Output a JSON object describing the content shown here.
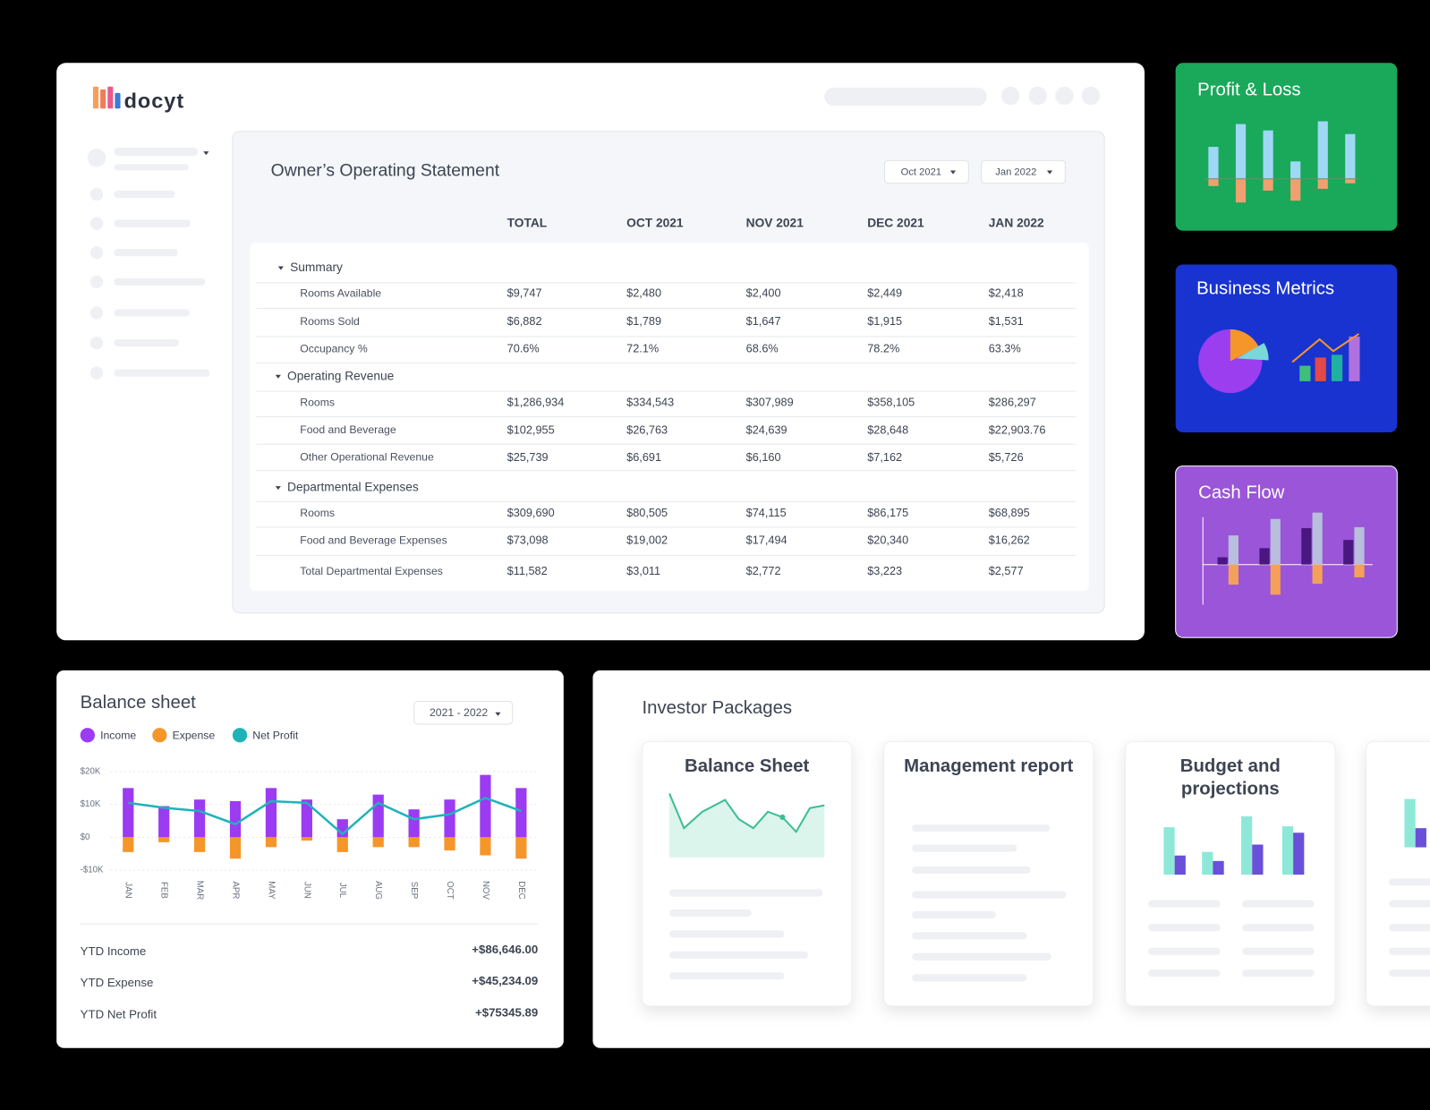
{
  "logo": "docyt",
  "statement": {
    "title": "Owner’s Operating Statement",
    "filters": [
      "Oct 2021",
      "Jan 2022"
    ],
    "columns": [
      "TOTAL",
      "OCT 2021",
      "NOV 2021",
      "DEC 2021",
      "JAN 2022"
    ],
    "sections": [
      {
        "name": "Summary",
        "rows": [
          {
            "label": "Rooms Available",
            "values": [
              "$9,747",
              "$2,480",
              "$2,400",
              "$2,449",
              "$2,418"
            ]
          },
          {
            "label": "Rooms Sold",
            "values": [
              "$6,882",
              "$1,789",
              "$1,647",
              "$1,915",
              "$1,531"
            ]
          },
          {
            "label": "Occupancy %",
            "values": [
              "70.6%",
              "72.1%",
              "68.6%",
              "78.2%",
              "63.3%"
            ]
          }
        ]
      },
      {
        "name": "Operating Revenue",
        "rows": [
          {
            "label": "Rooms",
            "values": [
              "$1,286,934",
              "$334,543",
              "$307,989",
              "$358,105",
              "$286,297"
            ]
          },
          {
            "label": "Food and Beverage",
            "values": [
              "$102,955",
              "$26,763",
              "$24,639",
              "$28,648",
              "$22,903.76"
            ]
          },
          {
            "label": "Other Operational Revenue",
            "values": [
              "$25,739",
              "$6,691",
              "$6,160",
              "$7,162",
              "$5,726"
            ]
          }
        ]
      },
      {
        "name": "Departmental Expenses",
        "rows": [
          {
            "label": "Rooms",
            "values": [
              "$309,690",
              "$80,505",
              "$74,115",
              "$86,175",
              "$68,895"
            ]
          },
          {
            "label": "Food and Beverage Expenses",
            "values": [
              "$73,098",
              "$19,002",
              "$17,494",
              "$20,340",
              "$16,262"
            ]
          },
          {
            "label": "Total Departmental Expenses",
            "values": [
              "$11,582",
              "$3,011",
              "$2,772",
              "$3,223",
              "$2,577"
            ]
          }
        ]
      }
    ]
  },
  "side_cards": [
    "Profit & Loss",
    "Business Metrics",
    "Cash Flow"
  ],
  "chart_data": {
    "type": "bar",
    "title": "Balance sheet",
    "categories": [
      "JAN",
      "FEB",
      "MAR",
      "APR",
      "MAY",
      "JUN",
      "JUL",
      "AUG",
      "SEP",
      "OCT",
      "NOV",
      "DEC"
    ],
    "series": [
      {
        "name": "Income",
        "type": "bar",
        "color": "#9b3bf2",
        "values": [
          15000,
          9500,
          11500,
          11000,
          15000,
          11500,
          5500,
          13000,
          8500,
          11500,
          19000,
          15000
        ]
      },
      {
        "name": "Expense",
        "type": "bar",
        "color": "#f5962a",
        "values": [
          -4500,
          -1500,
          -4500,
          -6500,
          -3000,
          -1000,
          -4500,
          -3000,
          -3000,
          -4000,
          -5500,
          -6500
        ]
      },
      {
        "name": "Net Profit",
        "type": "line",
        "color": "#1fb3b8",
        "values": [
          10500,
          9000,
          8000,
          4000,
          11000,
          10500,
          1000,
          10500,
          5500,
          7000,
          12000,
          8000
        ]
      }
    ],
    "ylim": [
      -10000,
      20000
    ],
    "yticks": [
      {
        "value": 20000,
        "label": "$20K"
      },
      {
        "value": 10000,
        "label": "$10K"
      },
      {
        "value": 0,
        "label": "$0"
      },
      {
        "value": -10000,
        "label": "-$10K"
      }
    ],
    "grid": true
  },
  "balance_sheet": {
    "period": "2021 - 2022",
    "summary": [
      {
        "label": "YTD Income",
        "value": "+$86,646.00"
      },
      {
        "label": "YTD Expense",
        "value": "+$45,234.09"
      },
      {
        "label": "YTD Net Profit",
        "value": "+$75345.89"
      }
    ]
  },
  "investor_packages": {
    "title": "Investor Packages",
    "cards": [
      "Balance Sheet",
      "Management report",
      "Budget and projections"
    ]
  }
}
